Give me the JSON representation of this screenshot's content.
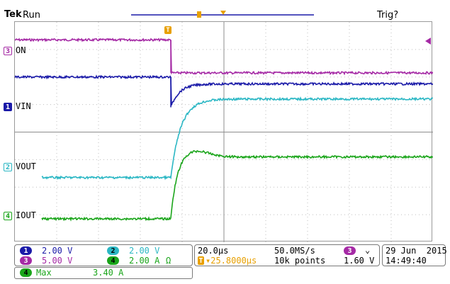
{
  "header": {
    "brand": "Tek",
    "run_state": "Run",
    "trigger_status": "Trig?"
  },
  "channels": {
    "ch3": {
      "number": "3",
      "name": "ON",
      "color": "#a52aa5"
    },
    "ch1": {
      "number": "1",
      "name": "VIN",
      "color": "#1a1aa8"
    },
    "ch2": {
      "number": "2",
      "name": "VOUT",
      "color": "#2bb7c4"
    },
    "ch4": {
      "number": "4",
      "name": "IOUT",
      "color": "#1aa51a"
    }
  },
  "settings": {
    "ch1_scale": "2.00 V",
    "ch3_scale": "5.00 V",
    "ch2_scale": "2.00 V",
    "ch4_scale": "2.00 A",
    "ch4_unit": "Ω",
    "horizontal_scale": "20.0µs",
    "sample_rate": "50.0MS/s",
    "trigger_position": "▾25.8000µs",
    "record_length": "10k points",
    "trigger_source": "3",
    "trigger_slope": "⌄",
    "trigger_level": "1.60 V"
  },
  "datetime": {
    "date": "29 Jun  2015",
    "time": "14:49:40"
  },
  "measurement": {
    "channel": "4",
    "label": "Max",
    "value": "3.40 A"
  },
  "chart_data": {
    "type": "line",
    "x_divisions": 10,
    "y_divisions": 8,
    "series": [
      {
        "name": "ON (ch3)",
        "color": "#a52aa5",
        "levels": [
          7.35,
          6.15
        ],
        "edge_div": 3.73
      },
      {
        "name": "VIN (ch1)",
        "color": "#1a1aa8",
        "levels": [
          6.0,
          5.75
        ],
        "dip_min": 4.9,
        "edge_div": 3.73
      },
      {
        "name": "VOUT (ch2)",
        "color": "#2bb7c4",
        "levels": [
          2.35,
          5.2
        ],
        "edge_div": 3.73
      },
      {
        "name": "IOUT (ch4)",
        "color": "#1aa51a",
        "levels": [
          0.85,
          3.1
        ],
        "peak": 3.35,
        "edge_div": 3.73
      }
    ]
  }
}
